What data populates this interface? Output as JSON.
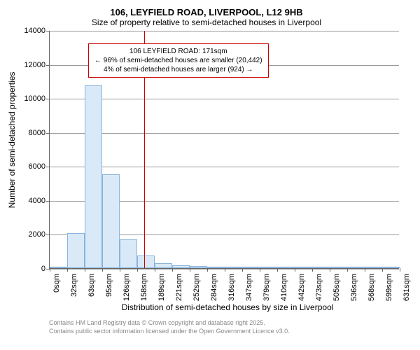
{
  "chart": {
    "type": "histogram",
    "title_line1": "106, LEYFIELD ROAD, LIVERPOOL, L12 9HB",
    "title_line2": "Size of property relative to semi-detached houses in Liverpool",
    "ylabel": "Number of semi-detached properties",
    "xlabel": "Distribution of semi-detached houses by size in Liverpool",
    "ylim": [
      0,
      14000
    ],
    "ytick_step": 2000,
    "yticks": [
      0,
      2000,
      4000,
      6000,
      8000,
      10000,
      12000,
      14000
    ],
    "x_categories": [
      "0sqm",
      "32sqm",
      "63sqm",
      "95sqm",
      "126sqm",
      "158sqm",
      "189sqm",
      "221sqm",
      "252sqm",
      "284sqm",
      "316sqm",
      "347sqm",
      "379sqm",
      "410sqm",
      "442sqm",
      "473sqm",
      "505sqm",
      "536sqm",
      "568sqm",
      "599sqm",
      "631sqm"
    ],
    "bar_values": [
      0,
      2050,
      10750,
      5500,
      1700,
      750,
      300,
      180,
      120,
      90,
      60,
      50,
      30,
      20,
      15,
      10,
      10,
      5,
      5,
      5
    ],
    "bar_color": "#dae9f7",
    "bar_border_color": "#88b4dd",
    "grid_color": "#999999",
    "axis_color": "#666666",
    "background_color": "#ffffff",
    "reference_line": {
      "value_sqm": 171,
      "color": "#cc0000"
    },
    "annotation": {
      "line1": "106 LEYFIELD ROAD: 171sqm",
      "line2": "← 96% of semi-detached houses are smaller (20,442)",
      "line3": "4% of semi-detached houses are larger (924) →",
      "border_color": "#cc0000",
      "background_color": "#ffffff"
    },
    "footer_line1": "Contains HM Land Registry data © Crown copyright and database right 2025.",
    "footer_line2": "Contains public sector information licensed under the Open Government Licence v3.0."
  }
}
